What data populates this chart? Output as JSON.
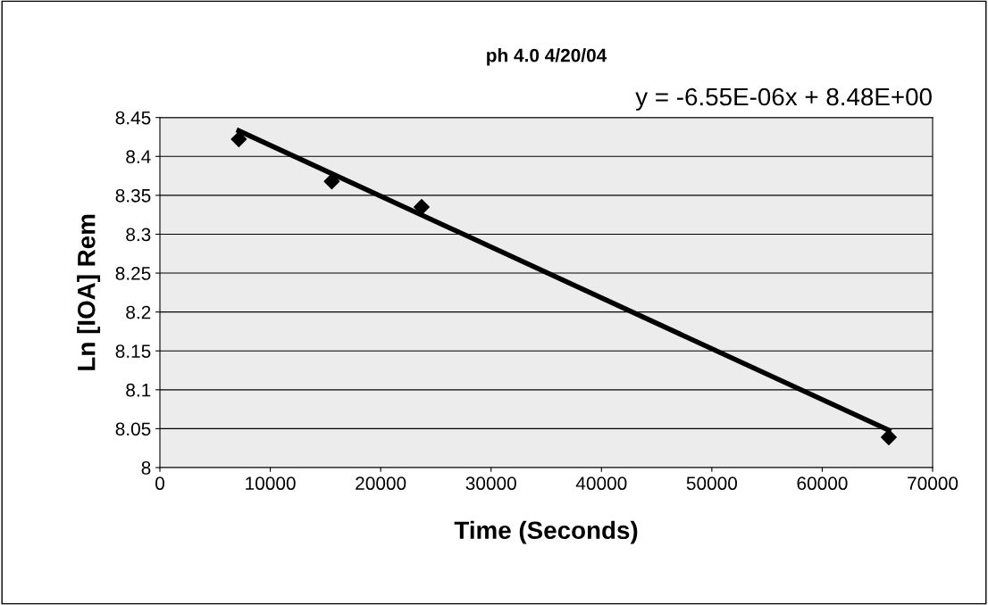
{
  "chart_data": {
    "type": "scatter",
    "title": "ph 4.0 4/20/04",
    "xlabel": "Time (Seconds)",
    "ylabel": "Ln [IOA] Rem",
    "annotations": [
      "y = -6.55E-06x + 8.48E+00"
    ],
    "series": [
      {
        "color": "#000000",
        "marker": "diamond",
        "x": [
          7150,
          15570,
          23710,
          66030
        ],
        "values": [
          8.422,
          8.368,
          8.335,
          8.039
        ]
      },
      {
        "type": "line",
        "color": "#000000",
        "marker": "none",
        "line_style": "solid",
        "x": [
          7150,
          66030
        ],
        "values": [
          8.433,
          8.048
        ]
      }
    ],
    "xlim": [
      0,
      70000
    ],
    "xticks": [
      0,
      10000,
      20000,
      30000,
      40000,
      50000,
      60000,
      70000
    ],
    "ylim": [
      8,
      8.45
    ],
    "yticks": [
      8,
      8.05,
      8.1,
      8.15,
      8.2,
      8.25,
      8.3,
      8.35,
      8.4,
      8.45
    ],
    "grid": "y",
    "legend": false
  }
}
